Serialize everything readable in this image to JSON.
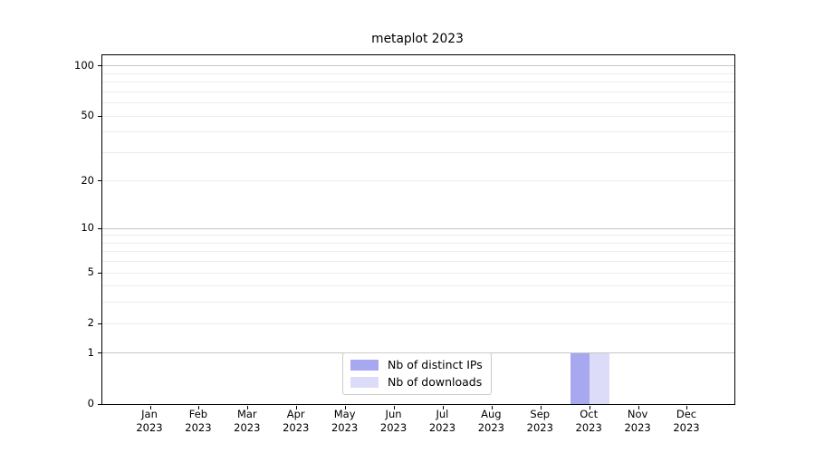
{
  "chart_data": {
    "type": "bar",
    "title": "metaplot 2023",
    "categories": [
      {
        "line1": "Jan",
        "line2": "2023"
      },
      {
        "line1": "Feb",
        "line2": "2023"
      },
      {
        "line1": "Mar",
        "line2": "2023"
      },
      {
        "line1": "Apr",
        "line2": "2023"
      },
      {
        "line1": "May",
        "line2": "2023"
      },
      {
        "line1": "Jun",
        "line2": "2023"
      },
      {
        "line1": "Jul",
        "line2": "2023"
      },
      {
        "line1": "Aug",
        "line2": "2023"
      },
      {
        "line1": "Sep",
        "line2": "2023"
      },
      {
        "line1": "Oct",
        "line2": "2023"
      },
      {
        "line1": "Nov",
        "line2": "2023"
      },
      {
        "line1": "Dec",
        "line2": "2023"
      }
    ],
    "series": [
      {
        "name": "Nb of distinct IPs",
        "color": "#a8a8f0",
        "values": [
          0,
          0,
          0,
          0,
          0,
          0,
          0,
          0,
          0,
          1,
          0,
          0
        ]
      },
      {
        "name": "Nb of downloads",
        "color": "#dcdcf8",
        "values": [
          0,
          0,
          0,
          0,
          0,
          0,
          0,
          0,
          0,
          1,
          0,
          0
        ]
      }
    ],
    "xlabel": "",
    "ylabel": "",
    "yscale": "log10(1+y)",
    "ylim": [
      0,
      115
    ],
    "y_ticks": [
      {
        "value": 0,
        "label": "0"
      },
      {
        "value": 1,
        "label": "1"
      },
      {
        "value": 2,
        "label": "2"
      },
      {
        "value": 5,
        "label": "5"
      },
      {
        "value": 10,
        "label": "10"
      },
      {
        "value": 20,
        "label": "20"
      },
      {
        "value": 50,
        "label": "50"
      },
      {
        "value": 100,
        "label": "100"
      }
    ],
    "y_major_grid": [
      1,
      10,
      100
    ],
    "y_minor_grid": [
      2,
      3,
      4,
      5,
      6,
      7,
      8,
      9,
      20,
      30,
      40,
      50,
      60,
      70,
      80,
      90
    ],
    "grid": true,
    "legend_position": "lower center",
    "colors": {
      "grid_major": "#c6c6c6",
      "grid_minor": "#ececec",
      "axis": "#000000",
      "background": "#ffffff"
    }
  }
}
